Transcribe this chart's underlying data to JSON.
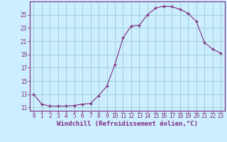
{
  "x": [
    0,
    1,
    2,
    3,
    4,
    5,
    6,
    7,
    8,
    9,
    10,
    11,
    12,
    13,
    14,
    15,
    16,
    17,
    18,
    19,
    20,
    21,
    22,
    23
  ],
  "y": [
    13.0,
    11.5,
    11.2,
    11.2,
    11.2,
    11.3,
    11.5,
    11.6,
    12.8,
    14.2,
    17.5,
    21.5,
    23.3,
    23.4,
    25.0,
    26.0,
    26.3,
    26.2,
    25.8,
    25.2,
    24.0,
    20.8,
    19.8,
    19.2
  ],
  "line_color": "#7f2a7f",
  "marker": "+",
  "bg_color": "#cceeff",
  "grid_color": "#99cccc",
  "axis_color": "#7f2a7f",
  "xlabel": "Windchill (Refroidissement éolien,°C)",
  "ylim": [
    10.5,
    27.0
  ],
  "xlim": [
    -0.5,
    23.5
  ],
  "yticks": [
    11,
    13,
    15,
    17,
    19,
    21,
    23,
    25
  ],
  "xticks": [
    0,
    1,
    2,
    3,
    4,
    5,
    6,
    7,
    8,
    9,
    10,
    11,
    12,
    13,
    14,
    15,
    16,
    17,
    18,
    19,
    20,
    21,
    22,
    23
  ],
  "font_family": "monospace",
  "tick_fontsize": 5.5,
  "xlabel_fontsize": 6.5
}
